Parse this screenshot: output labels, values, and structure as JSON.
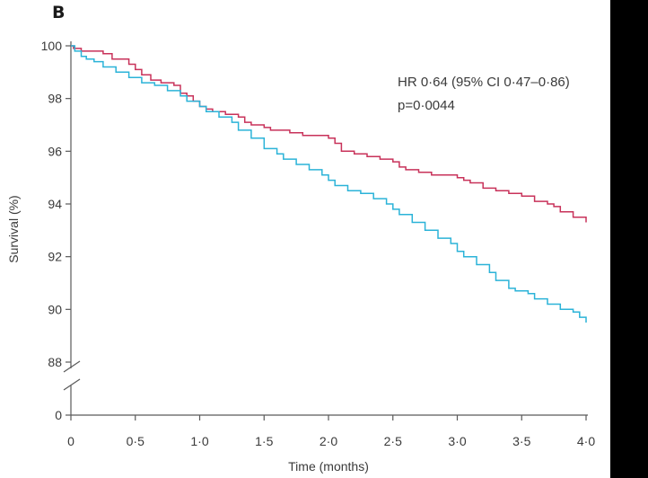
{
  "panel_label": "B",
  "colors": {
    "series_1": "#c8325a",
    "series_2": "#2bb3d8",
    "axis": "#5a5a5a",
    "text": "#3a3a3a",
    "edge_bar": "#000000"
  },
  "chart_data": {
    "type": "line",
    "step": true,
    "title": "",
    "xlabel": "Time (months)",
    "ylabel": "Survival (%)",
    "xlim": [
      0,
      4
    ],
    "ylim": [
      88,
      100
    ],
    "y_axis_break": {
      "below": 88,
      "bottom_tick": 0
    },
    "x_ticks": [
      "0",
      "0·5",
      "1·0",
      "1·5",
      "2·0",
      "2·5",
      "3·0",
      "3·5",
      "4·0"
    ],
    "y_ticks": [
      "100",
      "98",
      "96",
      "94",
      "92",
      "90",
      "88",
      "0"
    ],
    "annotations": [
      "HR 0·64 (95% CI 0·47–0·86)",
      "p=0·0044"
    ],
    "grid": false,
    "legend": "none",
    "series": [
      {
        "color": "#c8325a",
        "x": [
          0,
          0.02,
          0.08,
          0.15,
          0.25,
          0.32,
          0.45,
          0.5,
          0.55,
          0.62,
          0.7,
          0.8,
          0.85,
          0.9,
          0.95,
          1.0,
          1.05,
          1.1,
          1.2,
          1.3,
          1.35,
          1.4,
          1.5,
          1.55,
          1.6,
          1.7,
          1.8,
          1.9,
          2.0,
          2.05,
          2.1,
          2.2,
          2.3,
          2.4,
          2.5,
          2.55,
          2.6,
          2.7,
          2.8,
          2.9,
          3.0,
          3.05,
          3.1,
          3.2,
          3.3,
          3.4,
          3.5,
          3.6,
          3.7,
          3.75,
          3.8,
          3.9,
          4.0
        ],
        "y": [
          100,
          99.9,
          99.8,
          99.8,
          99.7,
          99.5,
          99.3,
          99.1,
          98.9,
          98.7,
          98.6,
          98.5,
          98.2,
          98.1,
          97.9,
          97.7,
          97.6,
          97.5,
          97.4,
          97.3,
          97.1,
          97.0,
          96.9,
          96.8,
          96.8,
          96.7,
          96.6,
          96.6,
          96.5,
          96.3,
          96.0,
          95.9,
          95.8,
          95.7,
          95.6,
          95.4,
          95.3,
          95.2,
          95.1,
          95.1,
          95.0,
          94.9,
          94.8,
          94.6,
          94.5,
          94.4,
          94.3,
          94.1,
          94.0,
          93.9,
          93.7,
          93.5,
          93.3
        ]
      },
      {
        "color": "#2bb3d8",
        "x": [
          0,
          0.03,
          0.08,
          0.12,
          0.18,
          0.25,
          0.35,
          0.45,
          0.55,
          0.65,
          0.75,
          0.85,
          0.9,
          1.0,
          1.05,
          1.15,
          1.25,
          1.3,
          1.4,
          1.5,
          1.6,
          1.65,
          1.75,
          1.85,
          1.95,
          2.0,
          2.05,
          2.15,
          2.25,
          2.35,
          2.45,
          2.5,
          2.55,
          2.65,
          2.75,
          2.85,
          2.95,
          3.0,
          3.05,
          3.15,
          3.25,
          3.3,
          3.4,
          3.45,
          3.55,
          3.6,
          3.7,
          3.8,
          3.9,
          3.95,
          4.0
        ],
        "y": [
          100,
          99.8,
          99.6,
          99.5,
          99.4,
          99.2,
          99.0,
          98.8,
          98.6,
          98.5,
          98.3,
          98.1,
          97.9,
          97.7,
          97.5,
          97.3,
          97.1,
          96.8,
          96.5,
          96.1,
          95.9,
          95.7,
          95.5,
          95.3,
          95.1,
          94.9,
          94.7,
          94.5,
          94.4,
          94.2,
          94.0,
          93.8,
          93.6,
          93.3,
          93.0,
          92.7,
          92.5,
          92.2,
          92.0,
          91.7,
          91.4,
          91.1,
          90.8,
          90.7,
          90.6,
          90.4,
          90.2,
          90.0,
          89.9,
          89.7,
          89.5
        ]
      }
    ]
  }
}
